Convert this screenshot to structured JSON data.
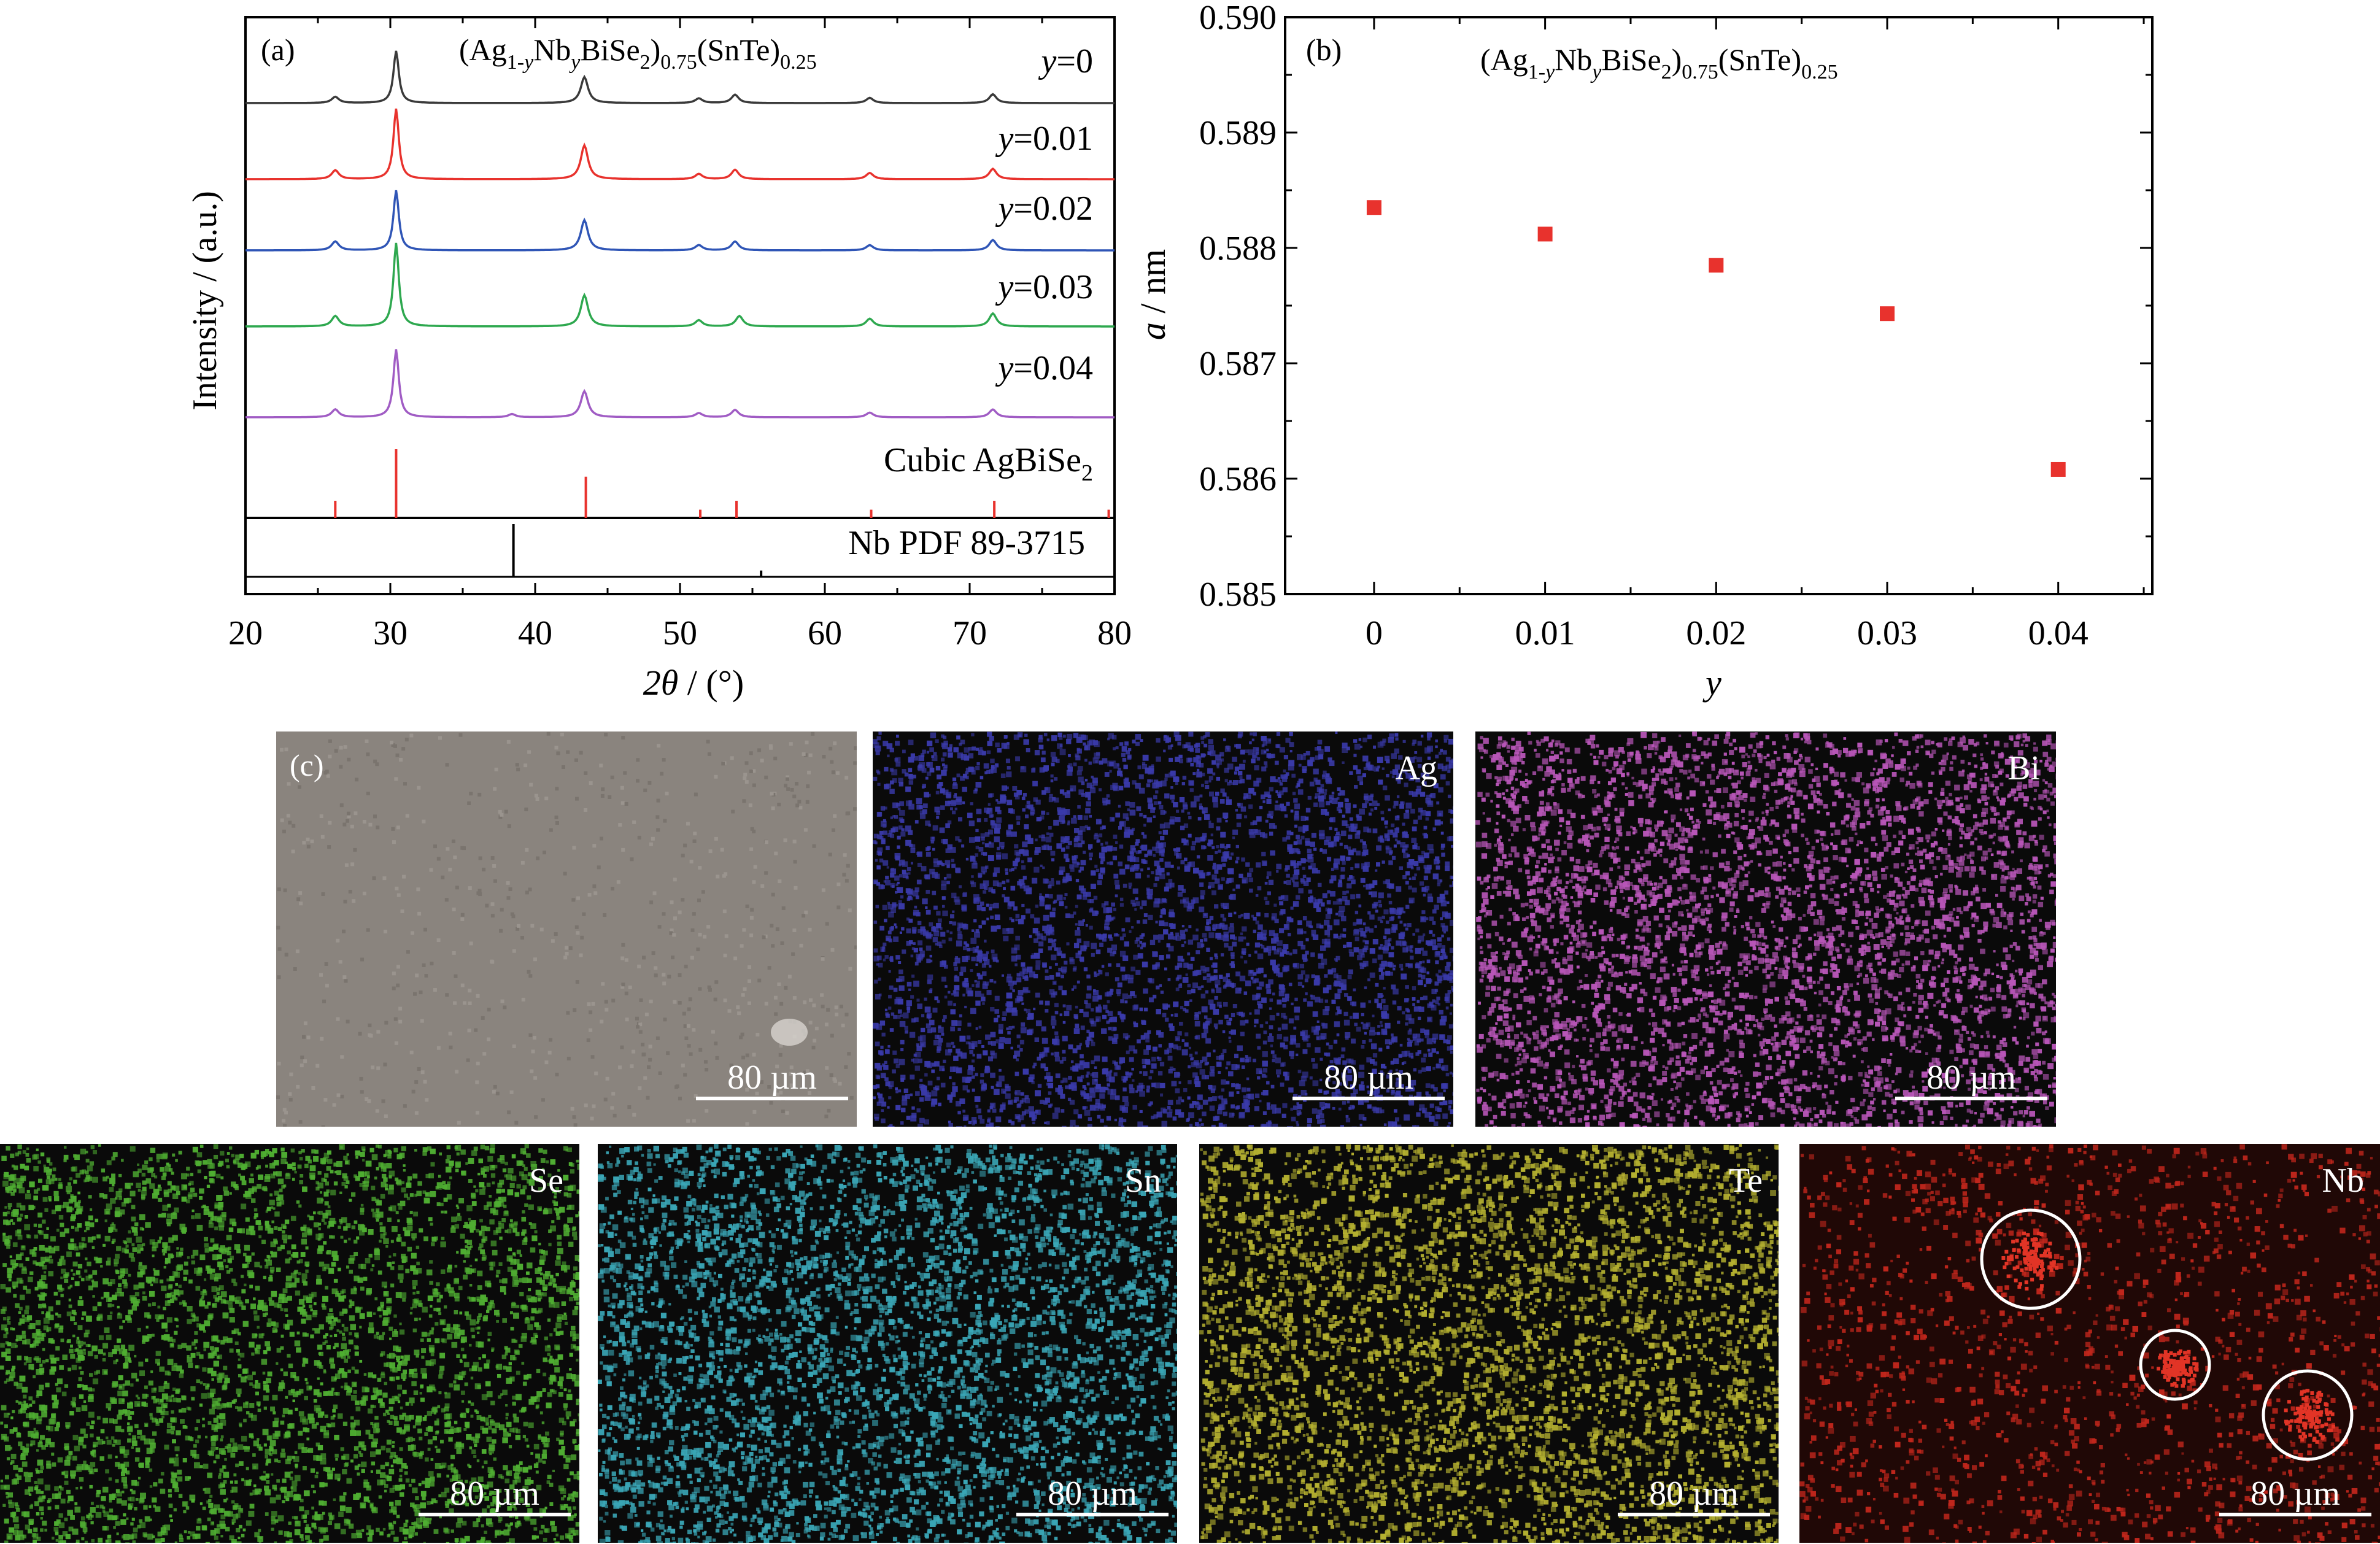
{
  "chart_data": [
    {
      "id": "a",
      "type": "line",
      "panel_label": "(a)",
      "formula": {
        "base": "(Ag",
        "sub1": "1-",
        "y1": "y",
        "mid": "Nb",
        "y2": "y",
        "mid2": "BiSe",
        "sub2": "2",
        "close": ")",
        "sub3": "0.75",
        "rest": "(SnTe)",
        "sub4": "0.25"
      },
      "xlabel": {
        "theta": "2θ",
        "unit": " / (°)"
      },
      "ylabel": "Intensity / (a.u.)",
      "xlim": [
        20,
        80
      ],
      "xticks": [
        "20",
        "30",
        "40",
        "50",
        "60",
        "70",
        "80"
      ],
      "series": [
        {
          "name": "y=0",
          "var": "y",
          "val": "=0",
          "color": "#3a3a3a",
          "offset": 0,
          "peaks": [
            [
              26.2,
              0.12
            ],
            [
              30.4,
              1.0
            ],
            [
              43.4,
              0.5
            ],
            [
              51.3,
              0.09
            ],
            [
              53.8,
              0.16
            ],
            [
              63.1,
              0.1
            ],
            [
              71.6,
              0.17
            ]
          ]
        },
        {
          "name": "y=0.01",
          "var": "y",
          "val": "=0.01",
          "color": "#e8322d",
          "offset": 1,
          "peaks": [
            [
              26.2,
              0.17
            ],
            [
              30.4,
              1.35
            ],
            [
              43.4,
              0.65
            ],
            [
              51.3,
              0.1
            ],
            [
              53.8,
              0.18
            ],
            [
              63.1,
              0.12
            ],
            [
              71.6,
              0.2
            ]
          ]
        },
        {
          "name": "y=0.02",
          "var": "y",
          "val": "=0.02",
          "color": "#2f55b6",
          "offset": 2,
          "peaks": [
            [
              26.2,
              0.17
            ],
            [
              30.4,
              1.15
            ],
            [
              43.4,
              0.58
            ],
            [
              51.3,
              0.1
            ],
            [
              53.8,
              0.17
            ],
            [
              63.1,
              0.1
            ],
            [
              71.6,
              0.2
            ]
          ]
        },
        {
          "name": "y=0.03",
          "var": "y",
          "val": "=0.03",
          "color": "#2ea84f",
          "offset": 3,
          "peaks": [
            [
              26.2,
              0.2
            ],
            [
              30.4,
              1.6
            ],
            [
              43.4,
              0.6
            ],
            [
              51.3,
              0.12
            ],
            [
              54.1,
              0.2
            ],
            [
              63.1,
              0.15
            ],
            [
              71.6,
              0.25
            ]
          ]
        },
        {
          "name": "y=0.04",
          "var": "y",
          "val": "=0.04",
          "color": "#a05cc4",
          "offset": 4,
          "peaks": [
            [
              26.2,
              0.15
            ],
            [
              30.4,
              1.3
            ],
            [
              38.4,
              0.06
            ],
            [
              43.4,
              0.5
            ],
            [
              51.3,
              0.08
            ],
            [
              53.8,
              0.14
            ],
            [
              63.1,
              0.09
            ],
            [
              71.6,
              0.15
            ]
          ]
        }
      ],
      "reference": {
        "name": "Cubic AgBiSe2",
        "label": "Cubic AgBiSe",
        "sub": "2",
        "color": "#e8322d",
        "lines": [
          [
            26.2,
            0.25
          ],
          [
            30.4,
            1.0
          ],
          [
            43.5,
            0.6
          ],
          [
            51.4,
            0.12
          ],
          [
            53.9,
            0.25
          ],
          [
            63.2,
            0.12
          ],
          [
            71.7,
            0.25
          ],
          [
            79.6,
            0.12
          ]
        ]
      },
      "reference2": {
        "name": "Nb PDF 89-3715",
        "color": "#000000",
        "lines": [
          [
            38.5,
            1.0
          ],
          [
            55.6,
            0.12
          ]
        ]
      }
    },
    {
      "id": "b",
      "type": "scatter",
      "panel_label": "(b)",
      "formula": {
        "base": "(Ag",
        "sub1": "1-",
        "y1": "y",
        "mid": "Nb",
        "y2": "y",
        "mid2": "BiSe",
        "sub2": "2",
        "close": ")",
        "sub3": "0.75",
        "rest": "(SnTe)",
        "sub4": "0.25"
      },
      "xlabel": "y",
      "ylabel": {
        "var": "a",
        "unit": " / nm"
      },
      "xlim": [
        -0.0052,
        0.0455
      ],
      "ylim": [
        0.585,
        0.59
      ],
      "xticks": [
        "0",
        "0.01",
        "0.02",
        "0.03",
        "0.04"
      ],
      "yticks": [
        "0.585",
        "0.586",
        "0.587",
        "0.588",
        "0.589",
        "0.590"
      ],
      "color": "#e8322d",
      "x": [
        0,
        0.01,
        0.02,
        0.03,
        0.04
      ],
      "y": [
        0.58835,
        0.58812,
        0.58785,
        0.58743,
        0.58608
      ]
    },
    {
      "id": "c",
      "type": "image-grid",
      "panel_label": "(c)",
      "scale_bar": "80 µm",
      "maps": [
        {
          "element": "",
          "kind": "sem",
          "color": "#8a847e"
        },
        {
          "element": "Ag",
          "kind": "map",
          "color": "#3a3aaa"
        },
        {
          "element": "Bi",
          "kind": "map",
          "color": "#b856b8"
        },
        {
          "element": "Se",
          "kind": "map",
          "color": "#4fae32"
        },
        {
          "element": "Sn",
          "kind": "map",
          "color": "#3aa6b6"
        },
        {
          "element": "Te",
          "kind": "map",
          "color": "#b4b030"
        },
        {
          "element": "Nb",
          "kind": "map",
          "color": "#c0261c"
        }
      ]
    }
  ]
}
